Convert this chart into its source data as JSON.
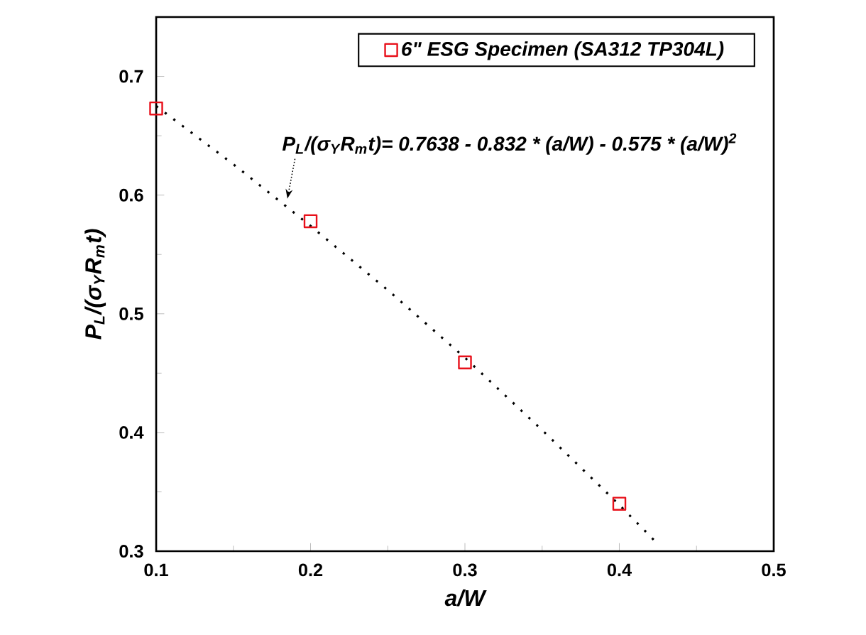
{
  "chart_data": {
    "type": "scatter",
    "xlabel": "a/W",
    "ylabel": "P$_{L}$/(σ$_{Y}$R$_{m}$t)",
    "xlim": [
      0.1,
      0.5
    ],
    "ylim": [
      0.3,
      0.75
    ],
    "xticks": [
      0.1,
      0.2,
      0.3,
      0.4,
      0.5
    ],
    "yticks": [
      0.3,
      0.4,
      0.5,
      0.6,
      0.7
    ],
    "legend": "top right",
    "grid": false,
    "series": [
      {
        "name": "6\" ESG Specimen (SA312 TP304L)",
        "marker": "square",
        "color": "#e8101a",
        "x": [
          0.1,
          0.2,
          0.3,
          0.4
        ],
        "values": [
          0.673,
          0.578,
          0.459,
          0.34
        ]
      },
      {
        "type": "line",
        "marker": "none",
        "line_style": "dotted",
        "color": "#000000",
        "x": [
          0.1,
          0.15,
          0.2,
          0.25,
          0.3,
          0.35,
          0.4,
          0.425
        ],
        "values": [
          0.675,
          0.626,
          0.574,
          0.52,
          0.463,
          0.402,
          0.339,
          0.306
        ]
      }
    ],
    "annotations": [
      {
        "text": "P$_{L}$/(σ$_{Y}$R$_{m}$t)= 0.7638 - 0.832 * (a/W) - 0.575 * (a/W)$^{2}$",
        "x": 0.185,
        "y": 0.597
      }
    ]
  }
}
